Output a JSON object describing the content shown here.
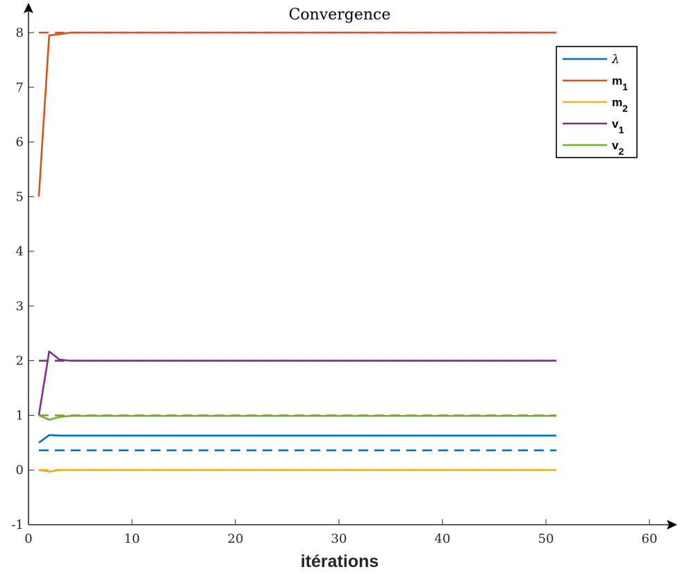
{
  "chart_data": {
    "type": "line",
    "title": "Convergence",
    "xlabel": "itérations",
    "ylabel": "",
    "xlim": [
      0,
      62
    ],
    "ylim": [
      -1,
      8.4
    ],
    "x_ticks": [
      0,
      10,
      20,
      30,
      40,
      50,
      60
    ],
    "y_ticks": [
      -1,
      0,
      1,
      2,
      3,
      4,
      5,
      6,
      7,
      8
    ],
    "x_tick_labels": [
      "0",
      "10",
      "20",
      "30",
      "40",
      "50",
      "60"
    ],
    "y_tick_labels": [
      "-1",
      "0",
      "1",
      "2",
      "3",
      "4",
      "5",
      "6",
      "7",
      "8"
    ],
    "grid": false,
    "legend_position": "top-right",
    "legend": [
      {
        "base": "λ",
        "sub": "",
        "color": "#0072BD"
      },
      {
        "base": "m",
        "sub": "1",
        "color": "#D95319"
      },
      {
        "base": "m",
        "sub": "2",
        "color": "#EDB120"
      },
      {
        "base": "v",
        "sub": "1",
        "color": "#7E2F8E"
      },
      {
        "base": "v",
        "sub": "2",
        "color": "#77AC30"
      }
    ],
    "series": [
      {
        "name": "λ",
        "color": "#0072BD",
        "style": "solid",
        "x": [
          1,
          2,
          3,
          51
        ],
        "y": [
          0.5,
          0.64,
          0.63,
          0.63
        ]
      },
      {
        "name": "m1",
        "color": "#D95319",
        "style": "solid",
        "x": [
          1,
          2,
          3,
          4,
          51
        ],
        "y": [
          5.0,
          7.95,
          7.97,
          8.0,
          8.0
        ]
      },
      {
        "name": "m2",
        "color": "#EDB120",
        "style": "solid",
        "x": [
          1,
          2,
          3,
          4,
          51
        ],
        "y": [
          0.0,
          -0.03,
          0.0,
          0.0,
          0.0
        ]
      },
      {
        "name": "v1",
        "color": "#7E2F8E",
        "style": "solid",
        "x": [
          1,
          2,
          3,
          4,
          51
        ],
        "y": [
          1.0,
          2.17,
          2.02,
          2.0,
          2.0
        ]
      },
      {
        "name": "v2",
        "color": "#77AC30",
        "style": "solid",
        "x": [
          1,
          2,
          3,
          4,
          51
        ],
        "y": [
          1.0,
          0.92,
          0.97,
          0.99,
          0.99
        ]
      },
      {
        "name": "",
        "color": "#0072BD",
        "style": "dashed",
        "x": [
          1,
          51
        ],
        "y": [
          0.36,
          0.36
        ]
      },
      {
        "name": "",
        "color": "#D95319",
        "style": "dashed",
        "x": [
          1,
          51
        ],
        "y": [
          8.0,
          8.0
        ]
      },
      {
        "name": "",
        "color": "#EDB120",
        "style": "dashed",
        "x": [
          1,
          51
        ],
        "y": [
          0.0,
          0.0
        ]
      },
      {
        "name": "",
        "color": "#7E2F8E",
        "style": "dashed",
        "x": [
          1,
          51
        ],
        "y": [
          2.0,
          2.0
        ]
      },
      {
        "name": "",
        "color": "#77AC30",
        "style": "dashed",
        "x": [
          1,
          51
        ],
        "y": [
          1.0,
          1.0
        ]
      }
    ]
  }
}
